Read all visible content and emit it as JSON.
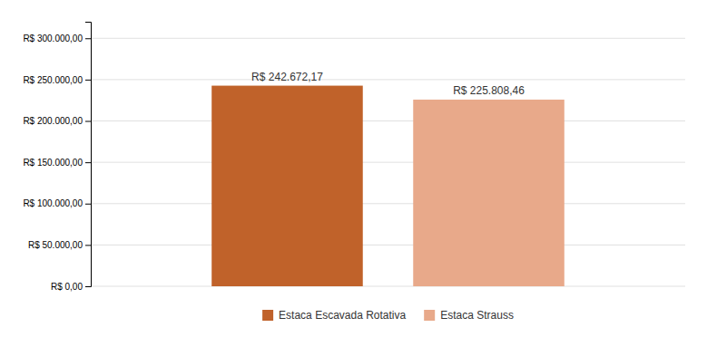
{
  "chart_data": {
    "type": "bar",
    "categories": [
      "Estaca Escavada Rotativa",
      "Estaca Strauss"
    ],
    "values": [
      242672.17,
      225808.46
    ],
    "value_labels": [
      "R$ 242.672,17",
      "R$ 225.808,46"
    ],
    "data_labels": true,
    "colors": [
      "#c0622a",
      "#e8a98a"
    ],
    "ylim": [
      0,
      320000
    ],
    "yticks": [
      {
        "value": 0,
        "label": "R$ 0,00"
      },
      {
        "value": 50000,
        "label": "R$ 50.000,00"
      },
      {
        "value": 100000,
        "label": "R$ 100.000,00"
      },
      {
        "value": 150000,
        "label": "R$ 150.000,00"
      },
      {
        "value": 200000,
        "label": "R$ 200.000,00"
      },
      {
        "value": 250000,
        "label": "R$ 250.000,00"
      },
      {
        "value": 300000,
        "label": "R$ 300.000,00"
      }
    ],
    "grid": true,
    "legend": "bottom",
    "tick_labels": "y"
  }
}
